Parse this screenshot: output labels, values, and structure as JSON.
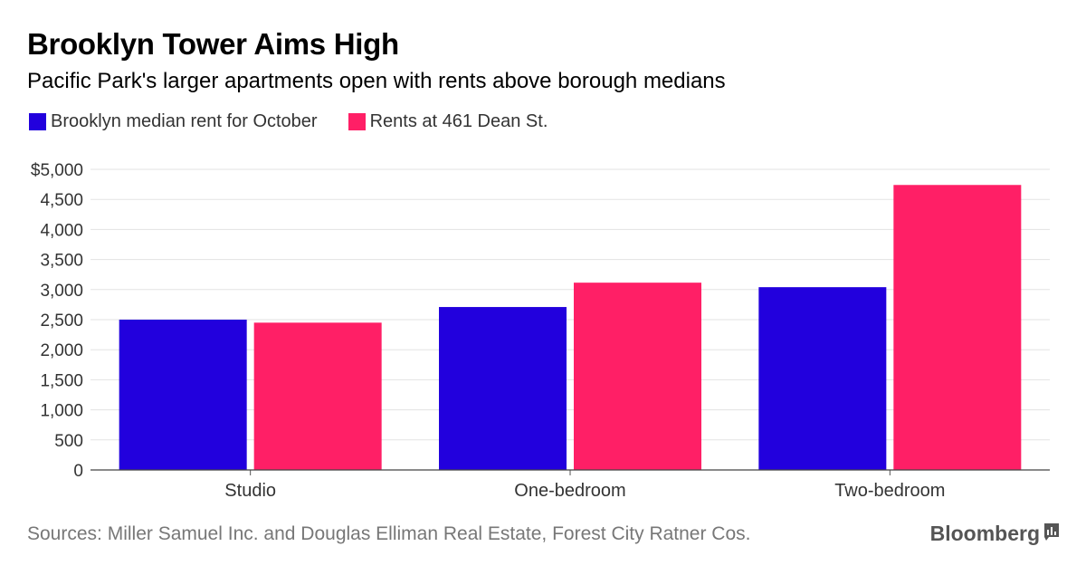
{
  "chart_data": {
    "type": "bar",
    "title": "Brooklyn Tower Aims High",
    "subtitle": "Pacific Park's larger apartments open with rents above borough medians",
    "categories": [
      "Studio",
      "One-bedroom",
      "Two-bedroom"
    ],
    "series": [
      {
        "name": "Brooklyn median rent for October",
        "color": "#2200dd",
        "values": [
          2500,
          2710,
          3040
        ]
      },
      {
        "name": "Rents at 461 Dean St.",
        "color": "#ff1f66",
        "values": [
          2450,
          3115,
          4740
        ]
      }
    ],
    "ylim": [
      0,
      5000
    ],
    "yticks": [
      0,
      500,
      1000,
      1500,
      2000,
      2500,
      3000,
      3500,
      4000,
      4500,
      5000
    ],
    "ytick_labels": [
      "0",
      "500",
      "1,000",
      "1,500",
      "2,000",
      "2,500",
      "3,000",
      "3,500",
      "4,000",
      "4,500",
      "$5,000"
    ],
    "grid": true,
    "legend_position": "top-left",
    "source": "Sources: Miller Samuel Inc. and Douglas Elliman Real Estate, Forest City Ratner Cos."
  },
  "brand": {
    "name": "Bloomberg",
    "icon": "bloomberg-chart-icon"
  }
}
